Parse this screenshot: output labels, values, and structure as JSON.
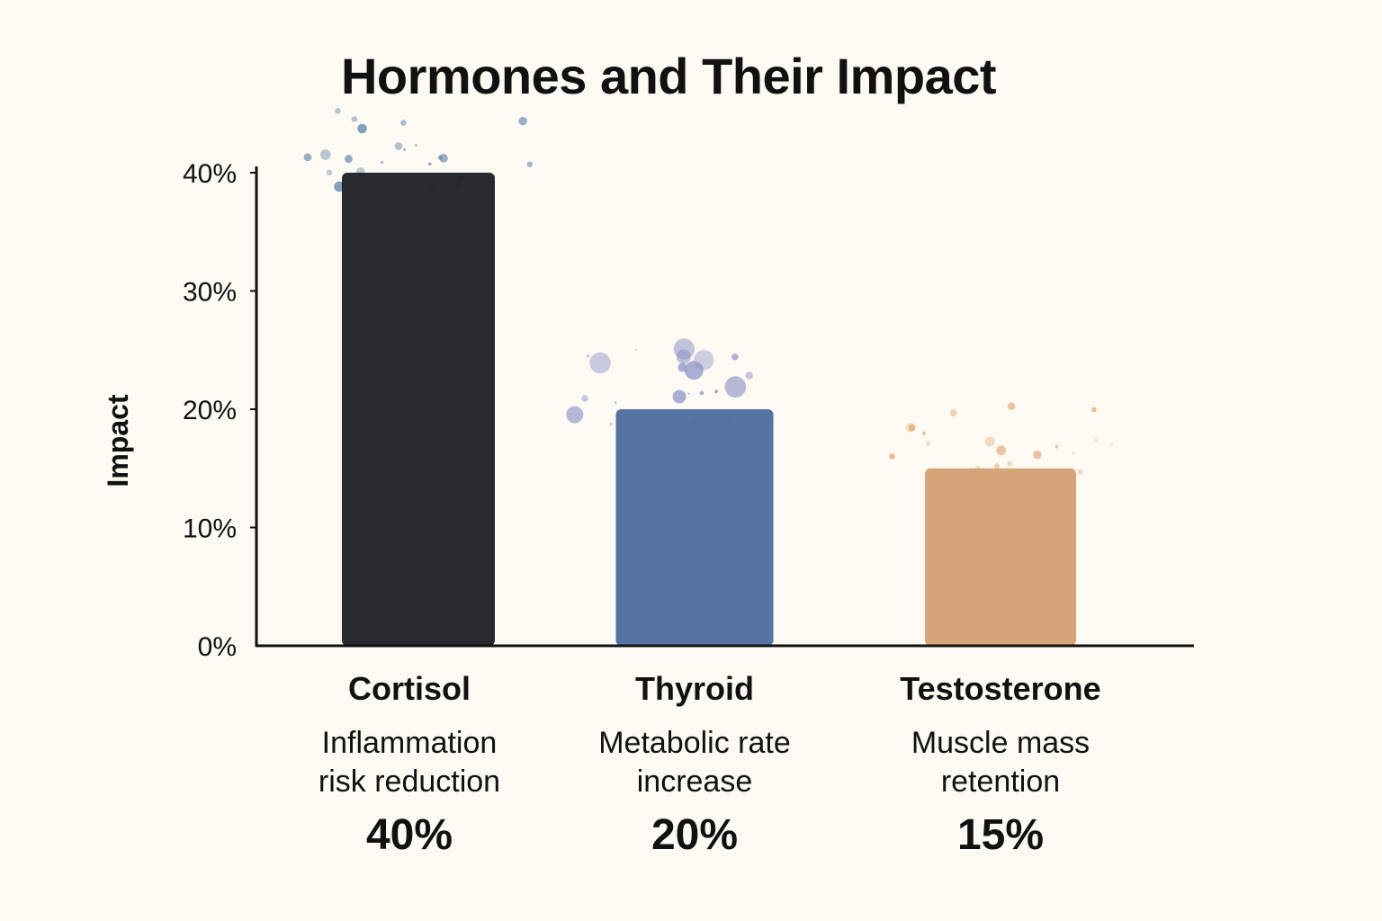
{
  "chart_data": {
    "type": "bar",
    "title": "Hormones and Their Impact",
    "xlabel": "",
    "ylabel": "Impact",
    "ylim": [
      0,
      40
    ],
    "yticks": [
      "0%",
      "10%",
      "20%",
      "30%",
      "40%"
    ],
    "grid": false,
    "categories": [
      "Cortisol",
      "Thyroid",
      "Testosterone"
    ],
    "descriptions": [
      [
        "Inflammation",
        "risk reduction"
      ],
      [
        "Metabolic rate",
        "increase"
      ],
      [
        "Muscle mass",
        "retention"
      ]
    ],
    "values": [
      40,
      20,
      15
    ],
    "value_labels": [
      "40%",
      "20%",
      "15%"
    ],
    "colors": [
      "#1c1f25",
      "#4c6d9e",
      "#d3a072"
    ]
  }
}
